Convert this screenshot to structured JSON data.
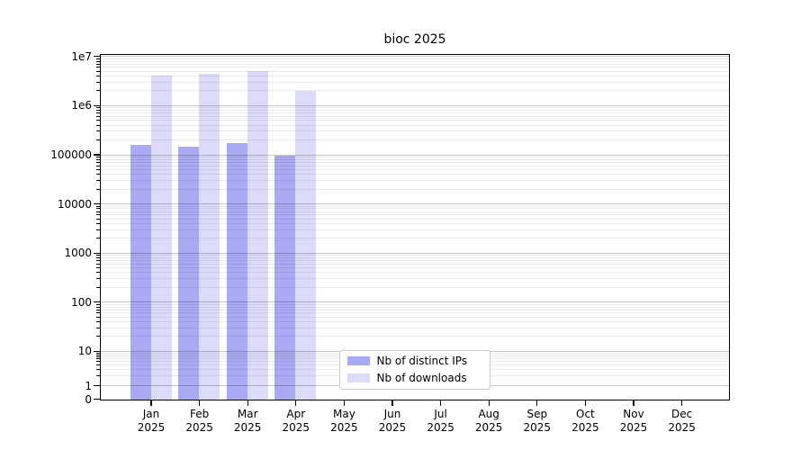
{
  "figure": {
    "background": "#ffffff"
  },
  "chart_data": {
    "type": "bar",
    "title": "bioc 2025",
    "categories": [
      "Jan",
      "Feb",
      "Mar",
      "Apr",
      "May",
      "Jun",
      "Jul",
      "Aug",
      "Sep",
      "Oct",
      "Nov",
      "Dec"
    ],
    "category_year": "2025",
    "series": [
      {
        "name": "Nb of distinct IPs",
        "color": "#a9a9f4",
        "values": [
          160000,
          151000,
          175000,
          96000,
          null,
          null,
          null,
          null,
          null,
          null,
          null,
          null
        ]
      },
      {
        "name": "Nb of downloads",
        "color": "#dcdcfa",
        "values": [
          4200000,
          4600000,
          5100000,
          2000000,
          null,
          null,
          null,
          null,
          null,
          null,
          null,
          null
        ]
      }
    ],
    "xlabel": "",
    "ylabel": "",
    "yscale": "symlog",
    "ylim": [
      0,
      10000000
    ],
    "yticks": [
      {
        "label": "1e7",
        "value": 10000000
      },
      {
        "label": "1e6",
        "value": 1000000
      },
      {
        "label": "100000",
        "value": 100000
      },
      {
        "label": "10000",
        "value": 10000
      },
      {
        "label": "1000",
        "value": 1000
      },
      {
        "label": "100",
        "value": 100
      },
      {
        "label": "10",
        "value": 10
      },
      {
        "label": "1",
        "value": 1
      },
      {
        "label": "0",
        "value": 0
      }
    ],
    "grid": {
      "horizontal_major": true,
      "horizontal_minor": true
    },
    "legend": {
      "position": "bottom-center",
      "entries": [
        "Nb of distinct IPs",
        "Nb of downloads"
      ]
    }
  },
  "colors": {
    "spine": "#000000",
    "grid_major": "rgba(0,0,0,0.22)",
    "grid_minor": "rgba(0,0,0,0.08)",
    "text": "#000000",
    "legend_border": "#cccccc",
    "background": "#ffffff"
  }
}
